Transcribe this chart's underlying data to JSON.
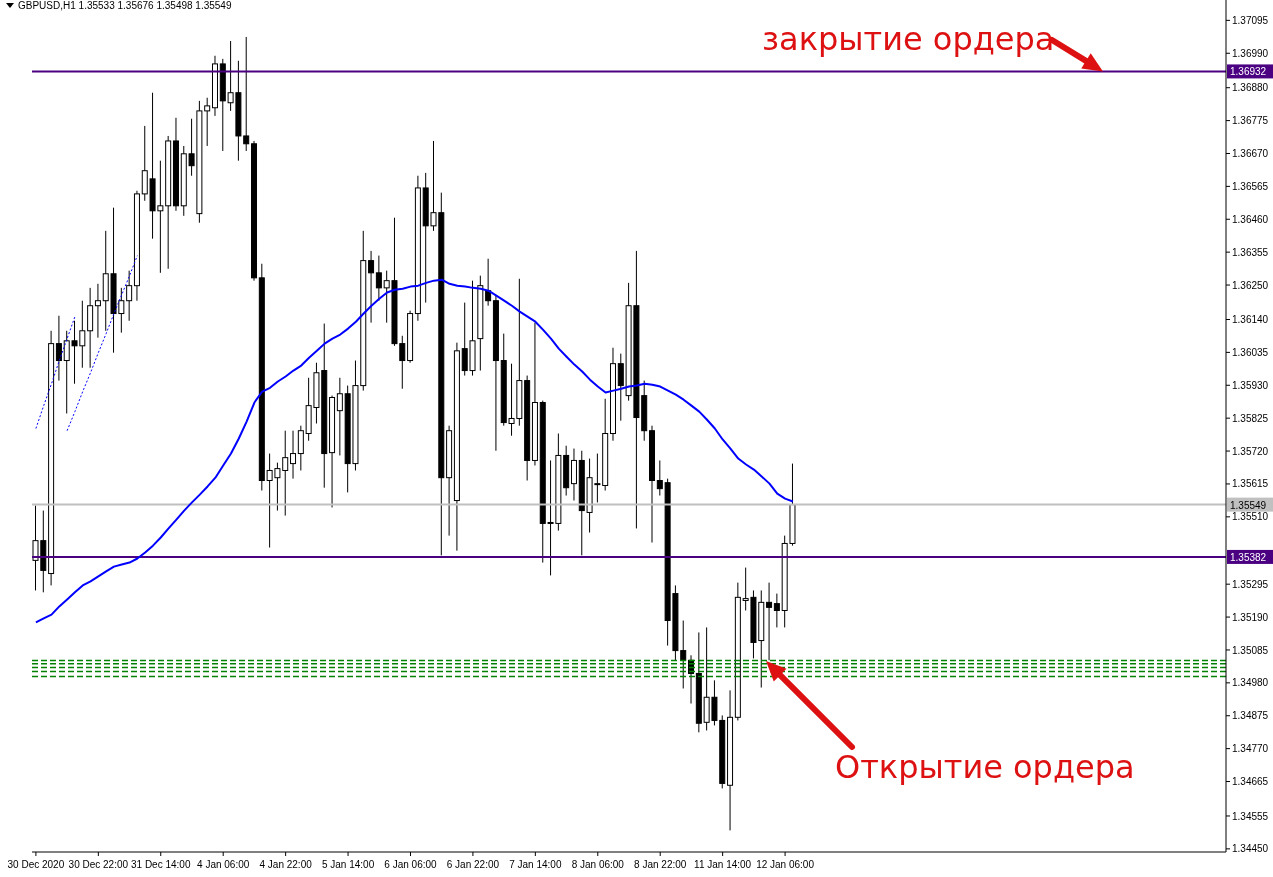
{
  "chart_data": {
    "type": "candlestick",
    "title": "GBPUSD,H1  1.35533 1.35676 1.35498 1.35549",
    "categories": [
      "30 Dec 2020",
      null,
      null,
      null,
      null,
      null,
      null,
      null,
      "30 Dec 22:00",
      null,
      null,
      null,
      null,
      null,
      null,
      null,
      "31 Dec 14:00",
      null,
      null,
      null,
      null,
      null,
      null,
      null,
      "4 Jan 06:00",
      null,
      null,
      null,
      null,
      null,
      null,
      null,
      "4 Jan 22:00",
      null,
      null,
      null,
      null,
      null,
      null,
      null,
      "5 Jan 14:00",
      null,
      null,
      null,
      null,
      null,
      null,
      null,
      "6 Jan 06:00",
      null,
      null,
      null,
      null,
      null,
      null,
      null,
      "6 Jan 22:00",
      null,
      null,
      null,
      null,
      null,
      null,
      null,
      "7 Jan 14:00",
      null,
      null,
      null,
      null,
      null,
      null,
      null,
      "8 Jan 06:00",
      null,
      null,
      null,
      null,
      null,
      null,
      null,
      "8 Jan 22:00",
      null,
      null,
      null,
      null,
      null,
      null,
      null,
      "11 Jan 14:00",
      null,
      null,
      null,
      null,
      null,
      null,
      null,
      "12 Jan 06:00",
      null,
      null,
      null,
      null,
      null,
      null,
      null,
      null,
      null,
      null,
      null,
      null,
      null,
      null,
      null,
      null,
      null,
      null,
      null,
      null,
      null,
      null,
      null,
      null,
      null,
      null,
      null,
      null,
      null,
      null,
      null,
      null,
      null,
      null,
      null,
      null,
      null,
      null,
      null,
      null,
      null,
      null,
      null,
      null,
      null,
      null,
      null,
      null,
      null,
      null,
      null,
      null,
      null,
      null,
      null,
      null
    ],
    "ohlc": [
      [
        1.35371,
        1.35546,
        1.35275,
        1.35434
      ],
      [
        1.35434,
        1.3553,
        1.35269,
        1.35339
      ],
      [
        1.35329,
        1.36104,
        1.35291,
        1.36063
      ],
      [
        1.36063,
        1.36152,
        1.35945,
        1.36009
      ],
      [
        1.36009,
        1.36104,
        1.3584,
        1.36072
      ],
      [
        1.36072,
        1.36136,
        1.35935,
        1.36056
      ],
      [
        1.36056,
        1.362,
        1.35986,
        1.36104
      ],
      [
        1.36104,
        1.36241,
        1.35986,
        1.36184
      ],
      [
        1.36184,
        1.36254,
        1.36082,
        1.362
      ],
      [
        1.362,
        1.36423,
        1.36104,
        1.36286
      ],
      [
        1.36286,
        1.36497,
        1.36034,
        1.36159
      ],
      [
        1.36159,
        1.36241,
        1.36098,
        1.362
      ],
      [
        1.362,
        1.36296,
        1.36136,
        1.36248
      ],
      [
        1.36248,
        1.36551,
        1.362,
        1.36541
      ],
      [
        1.36541,
        1.36758,
        1.36519,
        1.36615
      ],
      [
        1.36589,
        1.36864,
        1.36398,
        1.36487
      ],
      [
        1.36487,
        1.36647,
        1.36289,
        1.36503
      ],
      [
        1.36503,
        1.36726,
        1.36302,
        1.3671
      ],
      [
        1.3671,
        1.36784,
        1.36487,
        1.36503
      ],
      [
        1.36503,
        1.36694,
        1.36471,
        1.36669
      ],
      [
        1.36669,
        1.36781,
        1.36599,
        1.36631
      ],
      [
        1.36478,
        1.36838,
        1.36449,
        1.36806
      ],
      [
        1.36806,
        1.36848,
        1.36694,
        1.36822
      ],
      [
        1.36816,
        1.36982,
        1.3679,
        1.36956
      ],
      [
        1.36956,
        1.36972,
        1.36678,
        1.36838
      ],
      [
        1.36832,
        1.37029,
        1.36806,
        1.36864
      ],
      [
        1.36864,
        1.36966,
        1.36647,
        1.36726
      ],
      [
        1.36726,
        1.37042,
        1.36678,
        1.36701
      ],
      [
        1.36701,
        1.3671,
        1.36264,
        1.36273
      ],
      [
        1.36273,
        1.36318,
        1.35594,
        1.35626
      ],
      [
        1.35626,
        1.35712,
        1.35412,
        1.35658
      ],
      [
        1.35635,
        1.35683,
        1.3553,
        1.35664
      ],
      [
        1.35658,
        1.35785,
        1.35514,
        1.35699
      ],
      [
        1.3568,
        1.35785,
        1.35632,
        1.35712
      ],
      [
        1.35712,
        1.35801,
        1.35658,
        1.35785
      ],
      [
        1.35776,
        1.35954,
        1.35753,
        1.35865
      ],
      [
        1.35859,
        1.36002,
        1.35808,
        1.3597
      ],
      [
        1.35977,
        1.36127,
        1.35603,
        1.35712
      ],
      [
        1.35715,
        1.35897,
        1.3554,
        1.35891
      ],
      [
        1.35849,
        1.35954,
        1.35706,
        1.35903
      ],
      [
        1.35903,
        1.35929,
        1.35588,
        1.3568
      ],
      [
        1.3568,
        1.36009,
        1.35658,
        1.35929
      ],
      [
        1.35929,
        1.36423,
        1.35913,
        1.36328
      ],
      [
        1.36328,
        1.36359,
        1.3613,
        1.36289
      ],
      [
        1.36289,
        1.36344,
        1.362,
        1.36241
      ],
      [
        1.36241,
        1.36296,
        1.3613,
        1.36264
      ],
      [
        1.36264,
        1.36465,
        1.36056,
        1.36063
      ],
      [
        1.36063,
        1.36088,
        1.35919,
        1.36009
      ],
      [
        1.36009,
        1.36168,
        1.36002,
        1.36159
      ],
      [
        1.36159,
        1.36599,
        1.36136,
        1.3656
      ],
      [
        1.3656,
        1.36608,
        1.36194,
        1.36439
      ],
      [
        1.36439,
        1.3671,
        1.36423,
        1.36481
      ],
      [
        1.36481,
        1.36545,
        1.35387,
        1.35635
      ],
      [
        1.35635,
        1.35801,
        1.3545,
        1.35785
      ],
      [
        1.35562,
        1.36066,
        1.35402,
        1.3604
      ],
      [
        1.36047,
        1.36194,
        1.35961,
        1.35977
      ],
      [
        1.35977,
        1.36264,
        1.35961,
        1.36072
      ],
      [
        1.36079,
        1.3628,
        1.35977,
        1.36248
      ],
      [
        1.36232,
        1.36334,
        1.36184,
        1.362
      ],
      [
        1.362,
        1.36216,
        1.35721,
        1.36009
      ],
      [
        1.36009,
        1.36095,
        1.35801,
        1.35811
      ],
      [
        1.35808,
        1.35999,
        1.35769,
        1.35824
      ],
      [
        1.35824,
        1.3627,
        1.35801,
        1.35945
      ],
      [
        1.35945,
        1.35961,
        1.35626,
        1.3569
      ],
      [
        1.3569,
        1.3613,
        1.35674,
        1.35875
      ],
      [
        1.35875,
        1.35881,
        1.35364,
        1.35489
      ],
      [
        1.35489,
        1.3569,
        1.35323,
        1.35492
      ],
      [
        1.35489,
        1.35776,
        1.35466,
        1.35706
      ],
      [
        1.35706,
        1.35737,
        1.35578,
        1.35603
      ],
      [
        1.35616,
        1.35728,
        1.35562,
        1.3569
      ],
      [
        1.3569,
        1.35721,
        1.35387,
        1.3553
      ],
      [
        1.35524,
        1.35696,
        1.3546,
        1.35635
      ],
      [
        1.35616,
        1.35712,
        1.35556,
        1.35616
      ],
      [
        1.3561,
        1.35887,
        1.35594,
        1.35776
      ],
      [
        1.35776,
        1.3605,
        1.35753,
        1.35999
      ],
      [
        1.35999,
        1.36031,
        1.35817,
        1.35929
      ],
      [
        1.35897,
        1.36257,
        1.35881,
        1.36184
      ],
      [
        1.36184,
        1.36359,
        1.35473,
        1.35827
      ],
      [
        1.35897,
        1.35945,
        1.35753,
        1.35785
      ],
      [
        1.35785,
        1.35801,
        1.35428,
        1.35626
      ],
      [
        1.35626,
        1.3569,
        1.35578,
        1.356
      ],
      [
        1.35619,
        1.35632,
        1.35099,
        1.35179
      ],
      [
        1.35265,
        1.35291,
        1.35052,
        1.35083
      ],
      [
        1.35083,
        1.35179,
        1.34962,
        1.35052
      ],
      [
        1.35052,
        1.35068,
        1.34914,
        1.3501
      ],
      [
        1.3501,
        1.35141,
        1.34822,
        1.34851
      ],
      [
        1.34854,
        1.35157,
        1.34828,
        1.34934
      ],
      [
        1.34934,
        1.34988,
        1.34844,
        1.3486
      ],
      [
        1.3486,
        1.34876,
        1.34643,
        1.34659
      ],
      [
        1.34653,
        1.34956,
        1.34509,
        1.3487
      ],
      [
        1.3487,
        1.353,
        1.3486,
        1.35253
      ],
      [
        1.35243,
        1.35348,
        1.35211,
        1.35249
      ],
      [
        1.35253,
        1.35275,
        1.35058,
        1.35109
      ],
      [
        1.35115,
        1.35275,
        1.34965,
        1.35237
      ],
      [
        1.35237,
        1.353,
        1.35052,
        1.35221
      ],
      [
        1.35233,
        1.35265,
        1.35157,
        1.35211
      ],
      [
        1.35211,
        1.3545,
        1.35157,
        1.35425
      ],
      [
        1.35425,
        1.3568,
        1.35418,
        1.35549
      ],
      null,
      null,
      null,
      null,
      null,
      null,
      null,
      null,
      null,
      null,
      null,
      null,
      null,
      null,
      null,
      null,
      null,
      null,
      null,
      null,
      null,
      null,
      null,
      null,
      null,
      null,
      null,
      null,
      null,
      null,
      null,
      null,
      null,
      null,
      null,
      null,
      null,
      null,
      null,
      null,
      null,
      null,
      null,
      null,
      null,
      null,
      null,
      null,
      null,
      null,
      null,
      null,
      null,
      null,
      null
    ],
    "series": [
      {
        "type": "line",
        "color": "#0000ff",
        "values": [
          1.35173,
          1.35186,
          1.35198,
          1.35224,
          1.35246,
          1.35269,
          1.35291,
          1.35304,
          1.3532,
          1.35336,
          1.35351,
          1.35358,
          1.35364,
          1.35377,
          1.35396,
          1.35418,
          1.35444,
          1.35473,
          1.35501,
          1.3553,
          1.35556,
          1.35581,
          1.35607,
          1.35635,
          1.35674,
          1.35712,
          1.3576,
          1.35814,
          1.35875,
          1.3591,
          1.35922,
          1.35942,
          1.35958,
          1.35977,
          1.35993,
          1.36018,
          1.3604,
          1.36063,
          1.36079,
          1.36092,
          1.36111,
          1.36133,
          1.36159,
          1.36184,
          1.36206,
          1.36226,
          1.36235,
          1.36238,
          1.36245,
          1.36248,
          1.36257,
          1.36264,
          1.36267,
          1.36254,
          1.36248,
          1.36245,
          1.36241,
          1.36238,
          1.36232,
          1.36216,
          1.362,
          1.36184,
          1.36165,
          1.36149,
          1.36133,
          1.36107,
          1.36079,
          1.36047,
          1.36021,
          1.35996,
          1.35974,
          1.35948,
          1.35926,
          1.35907,
          1.35913,
          1.35919,
          1.35926,
          1.35929,
          1.35935,
          1.35932,
          1.35926,
          1.35913,
          1.359,
          1.35884,
          1.35865,
          1.35846,
          1.3582,
          1.35792,
          1.35757,
          1.35728,
          1.35696,
          1.35677,
          1.35661,
          1.35639,
          1.35616,
          1.35584,
          1.35568,
          1.35559,
          null,
          null,
          null,
          null,
          null,
          null,
          null,
          null,
          null,
          null,
          null,
          null,
          null,
          null,
          null,
          null,
          null,
          null,
          null,
          null,
          null,
          null,
          null,
          null,
          null,
          null,
          null,
          null,
          null,
          null,
          null,
          null,
          null,
          null,
          null,
          null,
          null,
          null,
          null,
          null,
          null,
          null,
          null,
          null,
          null,
          null,
          null,
          null,
          null,
          null,
          null,
          null,
          null,
          null,
          null
        ]
      },
      {
        "type": "line",
        "color": "#0000ff",
        "line_style": "dotted",
        "values": [
          1.35792,
          1.35865,
          1.35935,
          1.36009,
          1.36079,
          1.36149,
          null,
          null,
          null,
          null,
          null,
          null,
          null,
          null,
          null,
          null,
          null,
          null,
          null,
          null,
          null,
          null,
          null,
          null,
          null,
          null,
          null,
          null,
          null,
          null,
          null,
          null,
          null,
          null,
          null,
          null,
          null,
          null,
          null,
          null,
          null,
          null,
          null,
          null,
          null,
          null,
          null,
          null,
          null,
          null,
          null,
          null,
          null,
          null,
          null,
          null,
          null,
          null,
          null,
          null,
          null,
          null,
          null,
          null,
          null,
          null,
          null,
          null,
          null,
          null,
          null,
          null,
          null,
          null,
          null,
          null,
          null,
          null,
          null,
          null,
          null,
          null,
          null,
          null,
          null,
          null,
          null,
          null,
          null,
          null,
          null,
          null,
          null,
          null,
          null,
          null,
          null,
          null,
          null,
          null,
          null,
          null,
          null,
          null,
          null,
          null,
          null,
          null,
          null,
          null,
          null,
          null,
          null,
          null,
          null,
          null,
          null,
          null,
          null,
          null,
          null,
          null,
          null,
          null,
          null,
          null,
          null,
          null,
          null,
          null,
          null,
          null,
          null,
          null,
          null,
          null,
          null,
          null,
          null,
          null,
          null,
          null,
          null,
          null,
          null,
          null,
          null,
          null,
          null,
          null,
          null,
          null,
          null
        ]
      },
      {
        "type": "line",
        "color": "#0000ff",
        "line_style": "dotted",
        "values": [
          null,
          null,
          null,
          null,
          1.35785,
          1.35846,
          1.3591,
          1.3597,
          1.36034,
          1.36095,
          1.36159,
          1.36219,
          1.3628,
          1.36344,
          null,
          null,
          null,
          null,
          null,
          null,
          null,
          null,
          null,
          null,
          null,
          null,
          null,
          null,
          null,
          null,
          null,
          null,
          null,
          null,
          null,
          null,
          null,
          null,
          null,
          null,
          null,
          null,
          null,
          null,
          null,
          null,
          null,
          null,
          null,
          null,
          null,
          null,
          null,
          null,
          null,
          null,
          null,
          null,
          null,
          null,
          null,
          null,
          null,
          null,
          null,
          null,
          null,
          null,
          null,
          null,
          null,
          null,
          null,
          null,
          null,
          null,
          null,
          null,
          null,
          null,
          null,
          null,
          null,
          null,
          null,
          null,
          null,
          null,
          null,
          null,
          null,
          null,
          null,
          null,
          null,
          null,
          null,
          null,
          null,
          null,
          null,
          null,
          null,
          null,
          null,
          null,
          null,
          null,
          null,
          null,
          null,
          null,
          null,
          null,
          null,
          null,
          null,
          null,
          null,
          null,
          null,
          null,
          null,
          null,
          null,
          null,
          null,
          null,
          null,
          null,
          null,
          null,
          null,
          null,
          null,
          null,
          null,
          null,
          null,
          null,
          null,
          null,
          null,
          null,
          null,
          null,
          null,
          null,
          null,
          null,
          null,
          null,
          null
        ]
      }
    ],
    "ylim": [
      1.3444,
      1.3716
    ],
    "yticks": [
      1.37095,
      {
        "value": 1.3699,
        "label": "1.36990"
      },
      {
        "value": 1.3688,
        "label": "1.36880"
      },
      1.36775,
      {
        "value": 1.3667,
        "label": "1.36670"
      },
      1.36565,
      {
        "value": 1.3646,
        "label": "1.36460"
      },
      1.36355,
      {
        "value": 1.3625,
        "label": "1.36250"
      },
      {
        "value": 1.3614,
        "label": "1.36140"
      },
      1.36035,
      {
        "value": 1.3593,
        "label": "1.35930"
      },
      1.35825,
      {
        "value": 1.3572,
        "label": "1.35720"
      },
      1.35615,
      {
        "value": 1.3551,
        "label": "1.35510"
      },
      1.35295,
      {
        "value": 1.3519,
        "label": "1.35190"
      },
      1.35085,
      {
        "value": 1.3498,
        "label": "1.34980"
      },
      1.34875,
      {
        "value": 1.3477,
        "label": "1.34770"
      },
      1.34665,
      1.34555,
      {
        "value": 1.3445,
        "label": "1.34450"
      }
    ],
    "ref_lines": [
      {
        "axis": "y",
        "value": 1.36932,
        "label": "1.36932",
        "color": "#4b0082",
        "line_style": "solid"
      },
      {
        "axis": "y",
        "value": 1.35382,
        "label": "1.35382",
        "color": "#4b0082",
        "line_style": "solid"
      },
      {
        "axis": "y",
        "value": 1.35549,
        "label": "1.35549",
        "color": "#c0c0c0",
        "line_style": "solid"
      },
      {
        "axis": "y",
        "value": 1.35051,
        "color": "#008000",
        "line_style": "dashed"
      },
      {
        "axis": "y",
        "value": 1.35041,
        "color": "#008000",
        "line_style": "dashed"
      },
      {
        "axis": "y",
        "value": 1.35029,
        "color": "#008000",
        "line_style": "dashed"
      },
      {
        "axis": "y",
        "value": 1.35016,
        "color": "#008000",
        "line_style": "dashed"
      },
      {
        "axis": "y",
        "value": 1.35,
        "color": "#008000",
        "line_style": "dashed"
      }
    ],
    "annotations": [
      {
        "text": "закрытие ордера",
        "y": 1.36932
      },
      {
        "text": "Открытие ордера",
        "y": 1.3505
      }
    ]
  }
}
